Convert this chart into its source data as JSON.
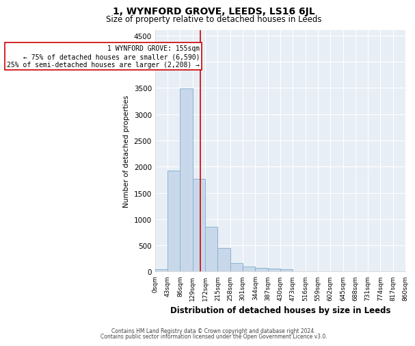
{
  "title": "1, WYNFORD GROVE, LEEDS, LS16 6JL",
  "subtitle": "Size of property relative to detached houses in Leeds",
  "xlabel": "Distribution of detached houses by size in Leeds",
  "ylabel": "Number of detached properties",
  "bin_labels": [
    "0sqm",
    "43sqm",
    "86sqm",
    "129sqm",
    "172sqm",
    "215sqm",
    "258sqm",
    "301sqm",
    "344sqm",
    "387sqm",
    "430sqm",
    "473sqm",
    "516sqm",
    "559sqm",
    "602sqm",
    "645sqm",
    "688sqm",
    "731sqm",
    "774sqm",
    "817sqm",
    "860sqm"
  ],
  "bar_values": [
    50,
    1920,
    3490,
    1770,
    850,
    450,
    160,
    100,
    70,
    55,
    40,
    0,
    0,
    0,
    0,
    0,
    0,
    0,
    0,
    0
  ],
  "bar_color": "#c8d8ea",
  "bar_edgecolor": "#8ab4d0",
  "vline_x": 155,
  "vline_color": "#cc0000",
  "ylim": [
    0,
    4600
  ],
  "yticks": [
    0,
    500,
    1000,
    1500,
    2000,
    2500,
    3000,
    3500,
    4000,
    4500
  ],
  "annotation_text": "1 WYNFORD GROVE: 155sqm\n← 75% of detached houses are smaller (6,590)\n25% of semi-detached houses are larger (2,208) →",
  "annotation_box_facecolor": "#ffffff",
  "annotation_box_edgecolor": "#cc0000",
  "footer_line1": "Contains HM Land Registry data © Crown copyright and database right 2024.",
  "footer_line2": "Contains public sector information licensed under the Open Government Licence v3.0.",
  "bin_width": 43,
  "num_bins": 20,
  "grid_color": "#ffffff",
  "bg_color": "#e8eef5",
  "title_fontsize": 10,
  "subtitle_fontsize": 8.5,
  "ylabel_fontsize": 7.5,
  "xlabel_fontsize": 8.5,
  "ytick_fontsize": 7.5,
  "xtick_fontsize": 6.5,
  "annot_fontsize": 7.0
}
